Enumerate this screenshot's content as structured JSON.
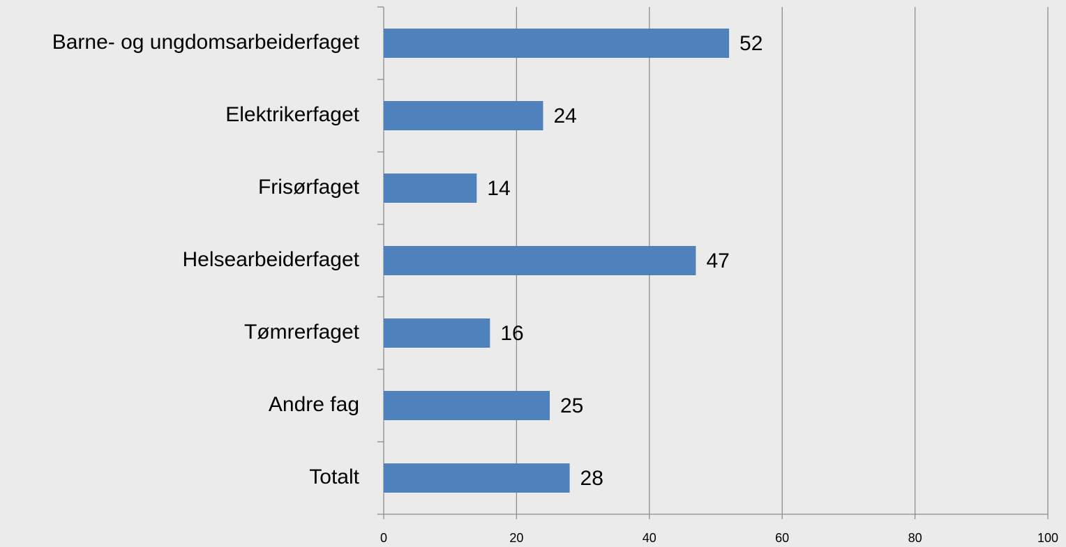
{
  "chart_data": {
    "type": "bar",
    "orientation": "horizontal",
    "categories": [
      "Barne- og ungdomsarbeiderfaget",
      "Elektrikerfaget",
      "Frisørfaget",
      "Helsearbeiderfaget",
      "Tømrerfaget",
      "Andre fag",
      "Totalt"
    ],
    "values": [
      52,
      24,
      14,
      47,
      16,
      25,
      28
    ],
    "color": "#4f81bd",
    "xlim": [
      0,
      100
    ],
    "xticks": [
      0,
      20,
      40,
      60,
      80,
      100
    ],
    "grid": true
  }
}
